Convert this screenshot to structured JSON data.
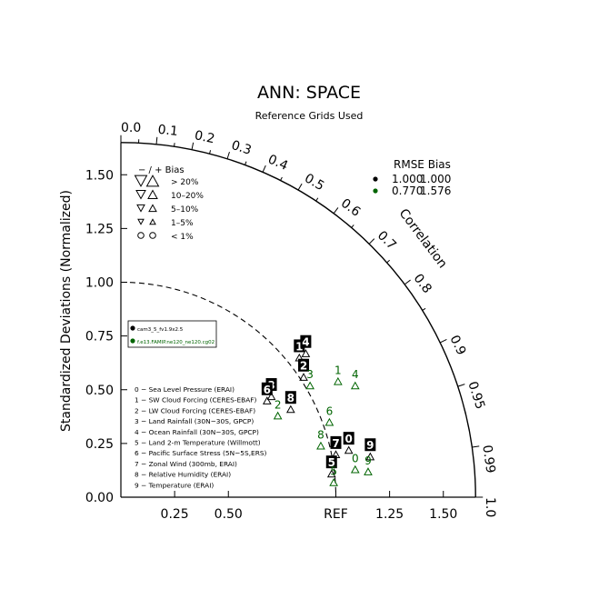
{
  "chart_data": {
    "type": "scatter",
    "title": "ANN: SPACE",
    "subtitle": "Reference Grids Used",
    "ylabel": "Standardized Deviations (Normalized)",
    "corr_label": "Correlation",
    "ref_label": "REF",
    "xlim": [
      0,
      1.65
    ],
    "std_ticks": [
      "0.00",
      "0.25",
      "0.50",
      "0.75",
      "1.00",
      "1.25",
      "1.50"
    ],
    "std_tick_values": [
      0,
      0.25,
      0.5,
      0.75,
      1.0,
      1.25,
      1.5
    ],
    "x_ticks": [
      "0.25",
      "0.50",
      "REF",
      "1.25",
      "1.50"
    ],
    "x_tick_values": [
      0.25,
      0.5,
      1.0,
      1.25,
      1.5
    ],
    "corr_ticks": [
      "0.0",
      "0.1",
      "0.2",
      "0.3",
      "0.4",
      "0.5",
      "0.6",
      "0.7",
      "0.8",
      "0.9",
      "0.95",
      "0.99",
      "1.0"
    ],
    "corr_tick_values": [
      0.0,
      0.1,
      0.2,
      0.3,
      0.4,
      0.5,
      0.6,
      0.7,
      0.8,
      0.9,
      0.95,
      0.99,
      1.0
    ],
    "bias_legend": {
      "header": "− / +      Bias",
      "rows": [
        "> 20%",
        "10–20%",
        "5–10%",
        "1–5%",
        "< 1%"
      ]
    },
    "rmse_legend": {
      "header": "RMSE  Bias",
      "rows": [
        {
          "rmse": "1.000",
          "bias": "1.000",
          "color": "#000000"
        },
        {
          "rmse": "0.770",
          "bias": "1.576",
          "color": "#006400"
        }
      ]
    },
    "series": [
      {
        "name": "cam3_5_fv1.9x2.5",
        "color": "#000000",
        "points": [
          {
            "id": "0",
            "x": 1.06,
            "y": 0.27
          },
          {
            "id": "1",
            "x": 0.83,
            "y": 0.7
          },
          {
            "id": "2",
            "x": 0.85,
            "y": 0.61
          },
          {
            "id": "3",
            "x": 0.7,
            "y": 0.52
          },
          {
            "id": "4",
            "x": 0.86,
            "y": 0.72
          },
          {
            "id": "5",
            "x": 0.98,
            "y": 0.16
          },
          {
            "id": "6",
            "x": 0.68,
            "y": 0.5
          },
          {
            "id": "7",
            "x": 1.0,
            "y": 0.25
          },
          {
            "id": "8",
            "x": 0.79,
            "y": 0.46
          },
          {
            "id": "9",
            "x": 1.16,
            "y": 0.24
          }
        ]
      },
      {
        "name": "f.e13.FAMIP.ne120_ne120.cg02",
        "color": "#006400",
        "points": [
          {
            "id": "0",
            "x": 1.09,
            "y": 0.18
          },
          {
            "id": "1",
            "x": 1.01,
            "y": 0.59
          },
          {
            "id": "2",
            "x": 0.73,
            "y": 0.43
          },
          {
            "id": "3",
            "x": 0.88,
            "y": 0.57
          },
          {
            "id": "4",
            "x": 1.09,
            "y": 0.57
          },
          {
            "id": "5",
            "x": 0.99,
            "y": 0.12
          },
          {
            "id": "6",
            "x": 0.97,
            "y": 0.4
          },
          {
            "id": "8",
            "x": 0.93,
            "y": 0.29
          },
          {
            "id": "9",
            "x": 1.15,
            "y": 0.17
          }
        ]
      }
    ],
    "variables": [
      "0 − Sea Level Pressure (ERAI)",
      "1 − SW Cloud Forcing (CERES-EBAF)",
      "2 − LW Cloud Forcing (CERES-EBAF)",
      "3 − Land Rainfall (30N−30S, GPCP)",
      "4 − Ocean Rainfall (30N−30S, GPCP)",
      "5 − Land 2-m Temperature (Willmott)",
      "6 − Pacific Surface Stress (5N−5S,ERS)",
      "7 − Zonal Wind (300mb, ERAI)",
      "8 − Relative Humidity (ERAI)",
      "9 − Temperature (ERAI)"
    ]
  }
}
